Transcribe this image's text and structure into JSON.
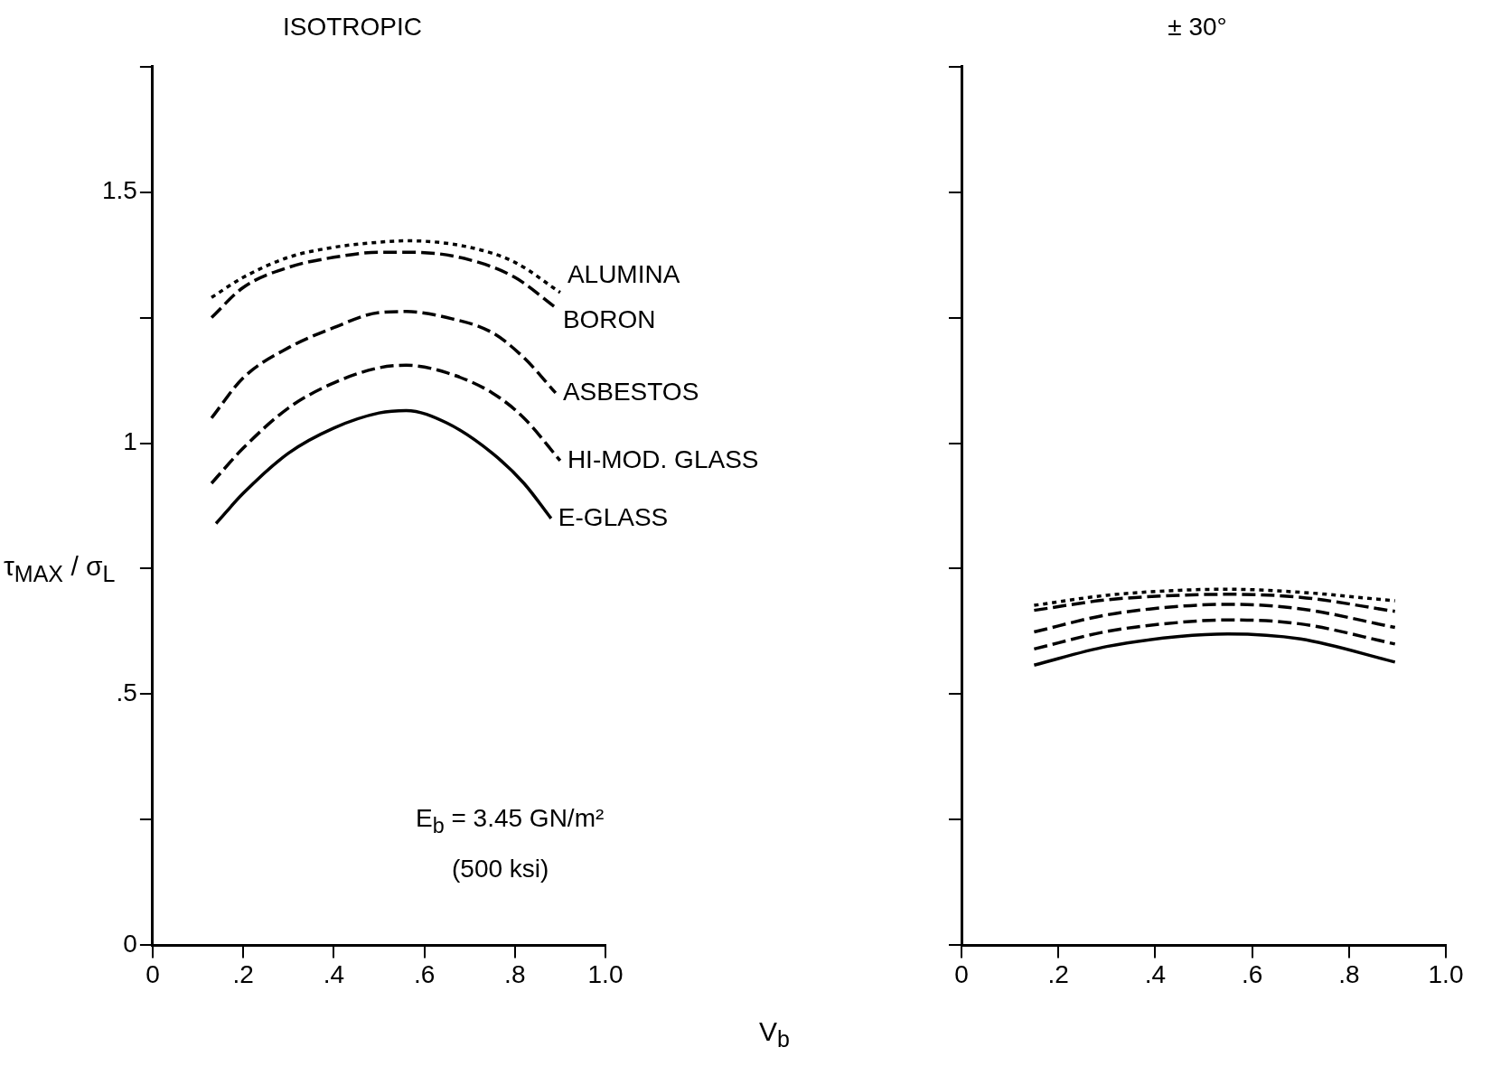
{
  "chart_data": [
    {
      "type": "line",
      "title": "ISOTROPIC",
      "xlabel": "V$_{b}$",
      "ylabel": "τ$_{MAX}$ / σ$_{L}$",
      "xlim": [
        0,
        1
      ],
      "ylim": [
        0,
        1.75
      ],
      "xticks": [
        {
          "value": 0,
          "label": "0"
        },
        {
          "value": 0.2,
          "label": ".2"
        },
        {
          "value": 0.4,
          "label": ".4"
        },
        {
          "value": 0.6,
          "label": ".6"
        },
        {
          "value": 0.8,
          "label": ".8"
        },
        {
          "value": 1,
          "label": "1.0"
        }
      ],
      "yticks": [
        {
          "value": 0,
          "label": "0"
        },
        {
          "value": 0.25,
          "label": null
        },
        {
          "value": 0.5,
          "label": ".5"
        },
        {
          "value": 0.75,
          "label": null
        },
        {
          "value": 1,
          "label": "1"
        },
        {
          "value": 1.25,
          "label": null
        },
        {
          "value": 1.5,
          "label": "1.5"
        },
        {
          "value": 1.75,
          "label": null
        }
      ],
      "grid": false,
      "legend": false,
      "marker": "none",
      "annotations": [
        "E$_{b}$ = 3.45 GN/m²",
        "(500 ksi)"
      ],
      "series": [
        {
          "name": "ALUMINA",
          "color": "#000000",
          "line_style": "dotted",
          "x": [
            0.13,
            0.2,
            0.3,
            0.4,
            0.5,
            0.56,
            0.7,
            0.8,
            0.9
          ],
          "values": [
            1.29,
            1.33,
            1.37,
            1.39,
            1.4,
            1.403,
            1.39,
            1.36,
            1.3
          ]
        },
        {
          "name": "BORON",
          "color": "#000000",
          "line_style": "dashed",
          "x": [
            0.13,
            0.2,
            0.3,
            0.4,
            0.5,
            0.58,
            0.7,
            0.8,
            0.89
          ],
          "values": [
            1.25,
            1.31,
            1.35,
            1.37,
            1.38,
            1.38,
            1.365,
            1.33,
            1.27
          ]
        },
        {
          "name": "ASBESTOS",
          "color": "#000000",
          "line_style": "dashed",
          "x": [
            0.13,
            0.2,
            0.3,
            0.4,
            0.5,
            0.56,
            0.65,
            0.75,
            0.82,
            0.89
          ],
          "values": [
            1.05,
            1.13,
            1.19,
            1.23,
            1.26,
            1.262,
            1.25,
            1.22,
            1.17,
            1.1
          ]
        },
        {
          "name": "HI-MOD. GLASS",
          "color": "#000000",
          "line_style": "dashed",
          "x": [
            0.13,
            0.2,
            0.3,
            0.4,
            0.5,
            0.56,
            0.65,
            0.75,
            0.82,
            0.9
          ],
          "values": [
            0.92,
            0.99,
            1.07,
            1.12,
            1.15,
            1.155,
            1.14,
            1.1,
            1.05,
            0.965
          ]
        },
        {
          "name": "E-GLASS",
          "color": "#000000",
          "line_style": "solid",
          "x": [
            0.14,
            0.2,
            0.3,
            0.4,
            0.5,
            0.56,
            0.65,
            0.75,
            0.82,
            0.88
          ],
          "values": [
            0.84,
            0.9,
            0.98,
            1.03,
            1.06,
            1.065,
            1.04,
            0.98,
            0.92,
            0.85
          ]
        }
      ]
    },
    {
      "type": "line",
      "title": "± 30°",
      "xlim": [
        0,
        1
      ],
      "ylim": [
        0,
        1.75
      ],
      "xticks": [
        {
          "value": 0,
          "label": "0"
        },
        {
          "value": 0.2,
          "label": ".2"
        },
        {
          "value": 0.4,
          "label": ".4"
        },
        {
          "value": 0.6,
          "label": ".6"
        },
        {
          "value": 0.8,
          "label": ".8"
        },
        {
          "value": 1,
          "label": "1.0"
        }
      ],
      "yticks": [
        0,
        0.25,
        0.5,
        0.75,
        1,
        1.25,
        1.5,
        1.75
      ],
      "tick_labels": "x",
      "grid": false,
      "legend": false,
      "marker": "none",
      "series": [
        {
          "color": "#000000",
          "line_style": "dotted",
          "x": [
            0.15,
            0.3,
            0.45,
            0.55,
            0.7,
            0.895
          ],
          "values": [
            0.677,
            0.697,
            0.707,
            0.709,
            0.703,
            0.686
          ]
        },
        {
          "color": "#000000",
          "line_style": "dashed",
          "x": [
            0.15,
            0.3,
            0.45,
            0.55,
            0.7,
            0.895
          ],
          "values": [
            0.667,
            0.688,
            0.697,
            0.699,
            0.693,
            0.665
          ]
        },
        {
          "color": "#000000",
          "line_style": "dashed",
          "x": [
            0.15,
            0.3,
            0.45,
            0.55,
            0.7,
            0.895
          ],
          "values": [
            0.624,
            0.658,
            0.675,
            0.679,
            0.67,
            0.633
          ]
        },
        {
          "color": "#000000",
          "line_style": "dashed",
          "x": [
            0.15,
            0.3,
            0.45,
            0.55,
            0.7,
            0.895
          ],
          "values": [
            0.59,
            0.625,
            0.643,
            0.648,
            0.64,
            0.6
          ]
        },
        {
          "color": "#000000",
          "line_style": "solid",
          "x": [
            0.15,
            0.3,
            0.45,
            0.55,
            0.7,
            0.895
          ],
          "values": [
            0.558,
            0.595,
            0.615,
            0.62,
            0.61,
            0.564
          ]
        }
      ]
    }
  ]
}
